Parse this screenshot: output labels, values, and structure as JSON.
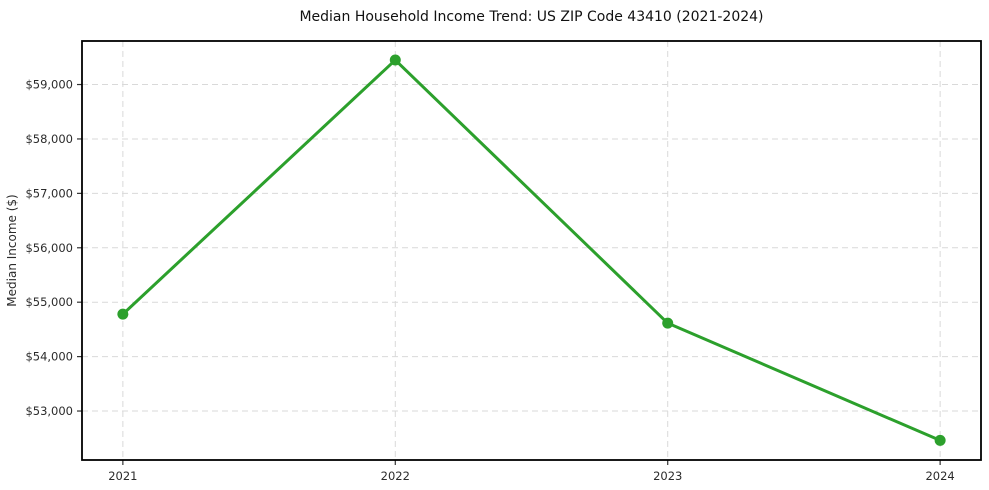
{
  "chart_data": {
    "type": "line",
    "title": "Median Household Income Trend: US ZIP Code 43410 (2021-2024)",
    "xlabel": "",
    "ylabel": "Median Income ($)",
    "x": [
      2021,
      2022,
      2023,
      2024
    ],
    "x_tick_labels": [
      "2021",
      "2022",
      "2023",
      "2024"
    ],
    "series": [
      {
        "name": "Median Household Income",
        "values": [
          54780,
          59450,
          54615,
          52460
        ]
      }
    ],
    "yticks": [
      53000,
      54000,
      55000,
      56000,
      57000,
      58000,
      59000
    ],
    "y_tick_labels": [
      "$53,000",
      "$54,000",
      "$55,000",
      "$56,000",
      "$57,000",
      "$58,000",
      "$59,000"
    ],
    "ylim": [
      52100,
      59800
    ],
    "xlim": [
      2020.85,
      2024.15
    ],
    "grid": true,
    "grid_style": "dashed",
    "legend": "none",
    "line_color": "#2ca02c",
    "marker": "circle",
    "marker_radius": 5.5
  }
}
